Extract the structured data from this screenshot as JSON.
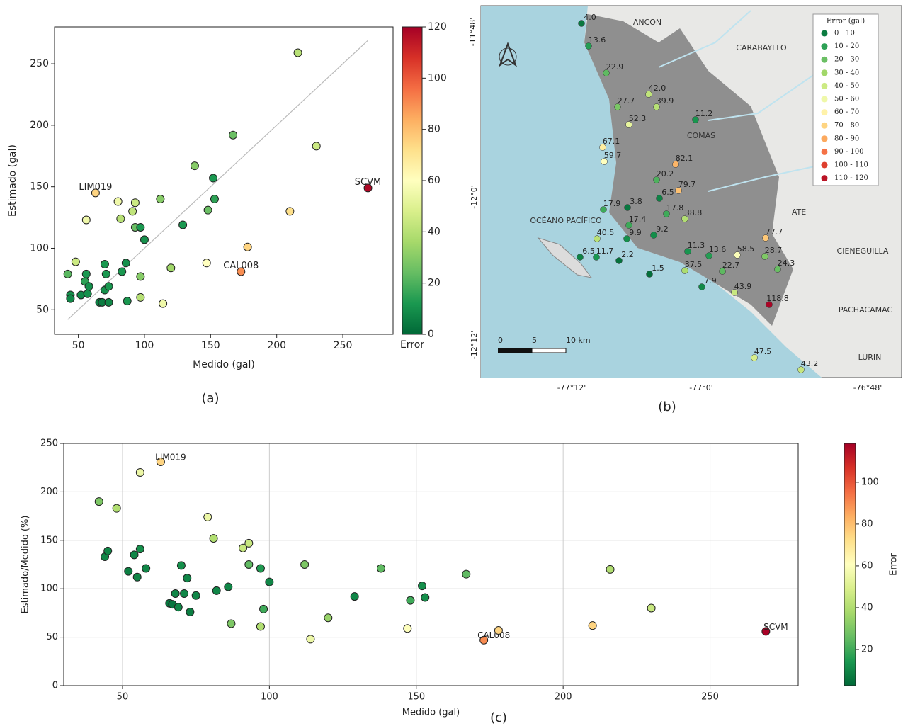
{
  "chart_data": [
    {
      "type": "scatter",
      "caption": "(a)",
      "xlabel": "Medido (gal)",
      "ylabel": "Estimado (gal)",
      "x": [
        42,
        44,
        44,
        48,
        52,
        55,
        56,
        56,
        57,
        58,
        63,
        66,
        68,
        70,
        70,
        71,
        73,
        73,
        80,
        82,
        83,
        86,
        87,
        91,
        93,
        93,
        97,
        97,
        97,
        100,
        112,
        114,
        120,
        129,
        138,
        147,
        148,
        152,
        153,
        167,
        173,
        178,
        210,
        216,
        230,
        269
      ],
      "y": [
        79,
        62,
        59,
        89,
        62,
        73,
        79,
        123,
        63,
        69,
        145,
        56,
        56,
        66,
        87,
        79,
        56,
        69,
        138,
        124,
        81,
        88,
        57,
        130,
        137,
        117,
        117,
        77,
        60,
        107,
        140,
        55,
        84,
        119,
        167,
        88,
        131,
        157,
        140,
        192,
        81,
        101,
        130,
        259,
        183,
        149
      ],
      "error": [
        22,
        10,
        8,
        45,
        8,
        15,
        12,
        55,
        10,
        10,
        75,
        6,
        5,
        10,
        12,
        12,
        8,
        12,
        55,
        40,
        12,
        10,
        12,
        42,
        45,
        25,
        12,
        30,
        40,
        10,
        30,
        55,
        35,
        12,
        30,
        60,
        25,
        12,
        15,
        25,
        90,
        75,
        72,
        40,
        45,
        118
      ],
      "point_labels": [
        null,
        null,
        null,
        null,
        null,
        null,
        null,
        null,
        null,
        null,
        "LIM019",
        null,
        null,
        null,
        null,
        null,
        null,
        null,
        null,
        null,
        null,
        null,
        null,
        null,
        null,
        null,
        null,
        null,
        null,
        null,
        null,
        null,
        null,
        null,
        null,
        null,
        null,
        null,
        null,
        null,
        "CAL008",
        null,
        null,
        null,
        null,
        "SCVM"
      ],
      "xlim": [
        32,
        288
      ],
      "ylim": [
        30,
        280
      ],
      "xticks": [
        50,
        100,
        150,
        200,
        250
      ],
      "yticks": [
        50,
        100,
        150,
        200,
        250
      ],
      "grid": false,
      "identity_line": true,
      "colormap": [
        "#006837",
        "#1a9850",
        "#66bd63",
        "#a6d96a",
        "#d9ef8b",
        "#ffffbf",
        "#fee08b",
        "#fdae61",
        "#f46d43",
        "#d73027",
        "#a50026"
      ],
      "colorbar": {
        "label": "Error",
        "lim": [
          0,
          120
        ],
        "ticks": [
          0,
          20,
          40,
          60,
          80,
          100,
          120
        ]
      }
    },
    {
      "type": "scatter",
      "caption": "(c)",
      "xlabel": "Medido (gal)",
      "ylabel": "Estimado/Medido (%)",
      "x": [
        42,
        44,
        45,
        48,
        52,
        54,
        55,
        56,
        56,
        58,
        63,
        66,
        67,
        68,
        69,
        70,
        71,
        72,
        73,
        75,
        79,
        81,
        82,
        86,
        87,
        91,
        93,
        93,
        97,
        97,
        98,
        100,
        112,
        114,
        120,
        129,
        138,
        147,
        148,
        152,
        153,
        167,
        173,
        178,
        210,
        216,
        230,
        269
      ],
      "y": [
        190,
        133,
        139,
        183,
        118,
        135,
        112,
        141,
        220,
        121,
        231,
        85,
        84,
        95,
        81,
        124,
        95,
        111,
        76,
        93,
        174,
        152,
        98,
        102,
        64,
        142,
        147,
        125,
        121,
        61,
        79,
        107,
        125,
        48,
        70,
        92,
        121,
        59,
        88,
        103,
        91,
        115,
        47,
        57,
        62,
        120,
        80,
        56
      ],
      "error": [
        30,
        10,
        10,
        40,
        8,
        10,
        10,
        12,
        55,
        10,
        75,
        6,
        6,
        10,
        10,
        12,
        10,
        10,
        8,
        10,
        55,
        40,
        10,
        10,
        30,
        45,
        45,
        25,
        15,
        40,
        20,
        10,
        30,
        55,
        35,
        10,
        25,
        60,
        20,
        12,
        12,
        25,
        90,
        75,
        75,
        40,
        45,
        118
      ],
      "point_labels": [
        null,
        null,
        null,
        null,
        null,
        null,
        null,
        null,
        null,
        null,
        "LIM019",
        null,
        null,
        null,
        null,
        null,
        null,
        null,
        null,
        null,
        null,
        null,
        null,
        null,
        null,
        null,
        null,
        null,
        null,
        null,
        null,
        null,
        null,
        null,
        null,
        null,
        null,
        null,
        null,
        null,
        null,
        null,
        "CAL008",
        null,
        null,
        null,
        null,
        "SCVM"
      ],
      "xlim": [
        30,
        280
      ],
      "ylim": [
        0,
        250
      ],
      "xticks": [
        50,
        100,
        150,
        200,
        250
      ],
      "yticks": [
        0,
        50,
        100,
        150,
        200,
        250
      ],
      "grid": true,
      "identity_line": false,
      "colormap": [
        "#006837",
        "#1a9850",
        "#66bd63",
        "#a6d96a",
        "#d9ef8b",
        "#ffffbf",
        "#fee08b",
        "#fdae61",
        "#f46d43",
        "#d73027",
        "#a50026"
      ],
      "colorbar": {
        "label": "Error",
        "lim": [
          2.7,
          118.6
        ],
        "ticks": [
          20,
          40,
          60,
          80,
          100
        ]
      }
    }
  ],
  "map": {
    "caption": "(b)",
    "places": [
      "ANCON",
      "CARABAYLLO",
      "COMAS",
      "ATE",
      "CIENEGUILLA",
      "PACHACAMAC",
      "LURIN",
      "OCÉANO PACÍFICO"
    ],
    "lat_ticks": [
      "-11°48'",
      "-12°0'",
      "-12°12'"
    ],
    "lon_ticks": [
      "-77°12'",
      "-77°0'",
      "-76°48'"
    ],
    "scale": [
      "0",
      "5",
      "10 km"
    ],
    "legend_title": "Error (gal)",
    "legend": [
      "0 - 10",
      "10 - 20",
      "20 - 30",
      "30 - 40",
      "40 - 50",
      "50 - 60",
      "60 - 70",
      "70 - 80",
      "80 - 90",
      "90 - 100",
      "100 - 110",
      "110 - 120"
    ],
    "stations": [
      "4.0",
      "13.6",
      "22.9",
      "42.0",
      "27.7",
      "39.9",
      "52.3",
      "11.2",
      "67.1",
      "59.7",
      "82.1",
      "20.2",
      "79.7",
      "6.5",
      "17.9",
      "3.8",
      "17.8",
      "38.8",
      "17.4",
      "40.5",
      "9.9",
      "9.2",
      "6.5",
      "11.7",
      "2.2",
      "11.3",
      "13.6",
      "58.5",
      "77.7",
      "28.7",
      "24.3",
      "1.5",
      "37.5",
      "22.7",
      "7.9",
      "43.9",
      "118.8",
      "47.5",
      "43.2"
    ]
  }
}
